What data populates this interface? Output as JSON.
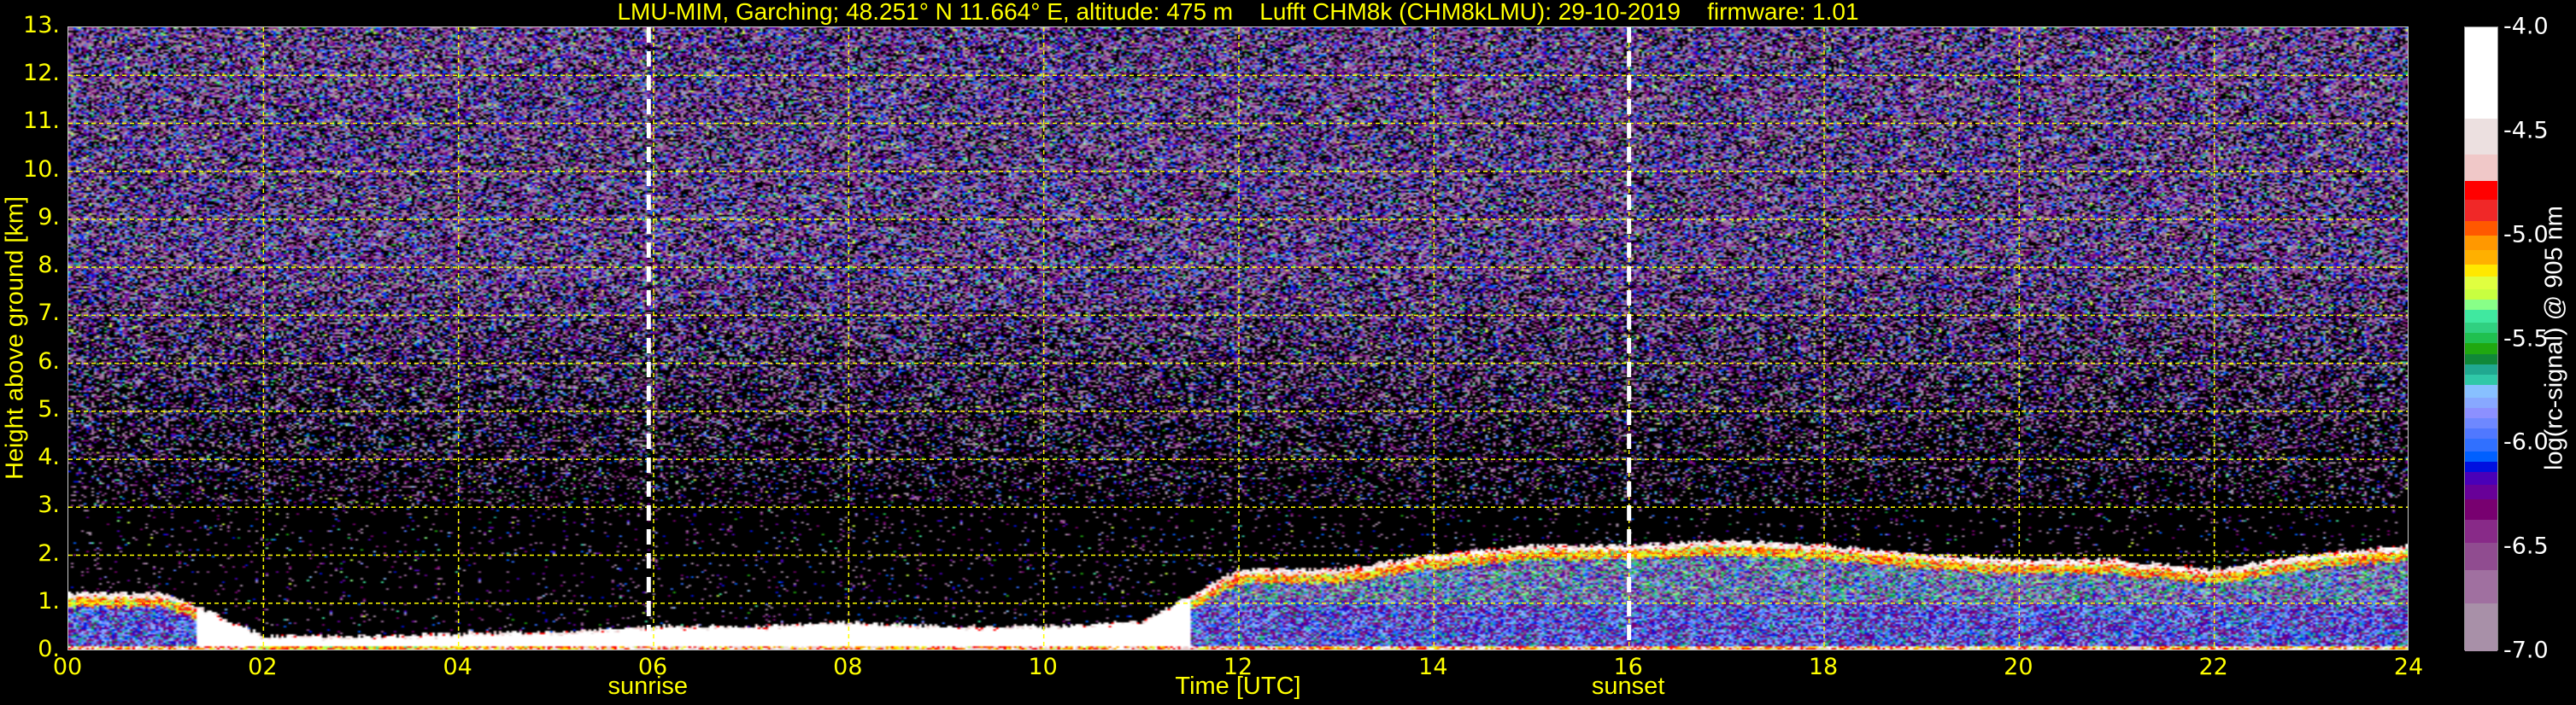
{
  "chart_data": {
    "type": "heatmap",
    "title": "LMU-MIM, Garching; 48.251° N 11.664° E, altitude: 475 m    Lufft CHM8k (CHM8kLMU): 29-10-2019    firmware: 1.01",
    "xlabel": "Time [UTC]",
    "ylabel": "Height above ground [km]",
    "xlim": [
      0,
      24
    ],
    "ylim": [
      0,
      13
    ],
    "x_ticks": [
      "00",
      "02",
      "04",
      "06",
      "08",
      "10",
      "12",
      "14",
      "16",
      "18",
      "20",
      "22",
      "24"
    ],
    "y_ticks": [
      "0.",
      "1.",
      "2.",
      "3.",
      "4.",
      "5.",
      "6.",
      "7.",
      "8.",
      "9.",
      "10.",
      "11.",
      "12.",
      "13."
    ],
    "grid": true,
    "grid_color": "#ffff00",
    "annotations": [
      {
        "label": "sunrise",
        "x": 5.95
      },
      {
        "label": "sunset",
        "x": 16.0
      }
    ],
    "colorbar": {
      "label": "log(rc-signal) @ 905 nm",
      "range": [
        -7.0,
        -4.0
      ],
      "ticks": [
        "-4.0",
        "-4.5",
        "-5.0",
        "-5.5",
        "-6.0",
        "-6.5",
        "-7.0"
      ],
      "boundaries": [
        -4.0,
        -4.44,
        -4.61,
        -4.74,
        -4.83,
        -4.93,
        -5.0,
        -5.07,
        -5.14,
        -5.2,
        -5.26,
        -5.31,
        -5.36,
        -5.42,
        -5.47,
        -5.52,
        -5.57,
        -5.62,
        -5.67,
        -5.72,
        -5.78,
        -5.83,
        -5.88,
        -5.93,
        -5.98,
        -6.04,
        -6.09,
        -6.14,
        -6.2,
        -6.27,
        -6.37,
        -6.48,
        -6.61,
        -6.77,
        -7.0
      ],
      "colors": [
        "#ffffff",
        "#ece0e0",
        "#f0c8c8",
        "#ff0000",
        "#f02828",
        "#ff5800",
        "#ff9800",
        "#ffb000",
        "#ffe800",
        "#e0ff40",
        "#c8ff40",
        "#88ff88",
        "#40e8a0",
        "#30d080",
        "#20c050",
        "#20a810",
        "#108838",
        "#20a890",
        "#30c8a8",
        "#88c0ff",
        "#88a8ff",
        "#8c90ff",
        "#6e88ff",
        "#5078ff",
        "#3070ff",
        "#0060ff",
        "#0010e0",
        "#4a00b8",
        "#680098",
        "#780070",
        "#882a88",
        "#904c90",
        "#a070a0",
        "#a890a8"
      ]
    },
    "layer_top_km": {
      "hours": [
        0,
        1,
        2,
        3,
        4,
        5,
        6,
        7,
        8,
        9,
        10,
        11,
        12,
        13,
        14,
        15,
        16,
        17,
        18,
        19,
        20,
        21,
        22,
        23,
        24
      ],
      "values": [
        1.2,
        1.2,
        0.3,
        0.3,
        0.35,
        0.4,
        0.5,
        0.5,
        0.6,
        0.5,
        0.5,
        0.6,
        1.7,
        1.7,
        2.0,
        2.2,
        2.2,
        2.3,
        2.2,
        2.0,
        1.9,
        1.9,
        1.7,
        2.0,
        2.2
      ]
    }
  }
}
